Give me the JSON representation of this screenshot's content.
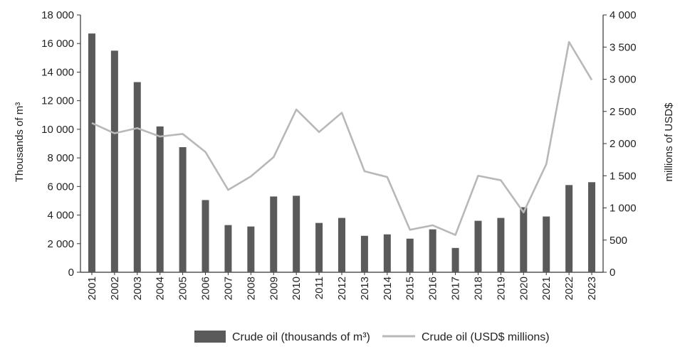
{
  "chart_data": {
    "type": "bar",
    "categories": [
      "2001",
      "2002",
      "2003",
      "2004",
      "2005",
      "2006",
      "2007",
      "2008",
      "2009",
      "2010",
      "2011",
      "2012",
      "2013",
      "2014",
      "2015",
      "2016",
      "2017",
      "2018",
      "2019",
      "2020",
      "2021",
      "2022",
      "2023"
    ],
    "series": [
      {
        "name": "Crude oil (thousands of m³)",
        "type": "bar",
        "axis": "left",
        "color": "#5a5a5a",
        "values": [
          16700,
          15500,
          13300,
          10200,
          8750,
          5050,
          3300,
          3200,
          5300,
          5350,
          3450,
          3800,
          2550,
          2650,
          2350,
          3000,
          1700,
          3600,
          3800,
          4550,
          3900,
          6100,
          6300
        ]
      },
      {
        "name": "Crude oil (USD$ millions)",
        "type": "line",
        "axis": "right",
        "color": "#b8b8b8",
        "values": [
          2320,
          2160,
          2240,
          2110,
          2150,
          1870,
          1280,
          1490,
          1790,
          2530,
          2180,
          2480,
          1570,
          1480,
          660,
          730,
          580,
          1500,
          1430,
          930,
          1680,
          3580,
          2990
        ]
      }
    ],
    "ylabel": "Thousands of m³",
    "y2label": "millions of USD$",
    "ylim": [
      0,
      18000
    ],
    "y2lim": [
      0,
      4000
    ],
    "yticks": [
      "0",
      "2 000",
      "4 000",
      "6 000",
      "8 000",
      "10 000",
      "12 000",
      "14 000",
      "16 000",
      "18 000"
    ],
    "y2ticks": [
      "0",
      "500",
      "1 000",
      "1 500",
      "2 000",
      "2 500",
      "3 000",
      "3 500",
      "4 000"
    ],
    "legend_position": "bottom"
  }
}
